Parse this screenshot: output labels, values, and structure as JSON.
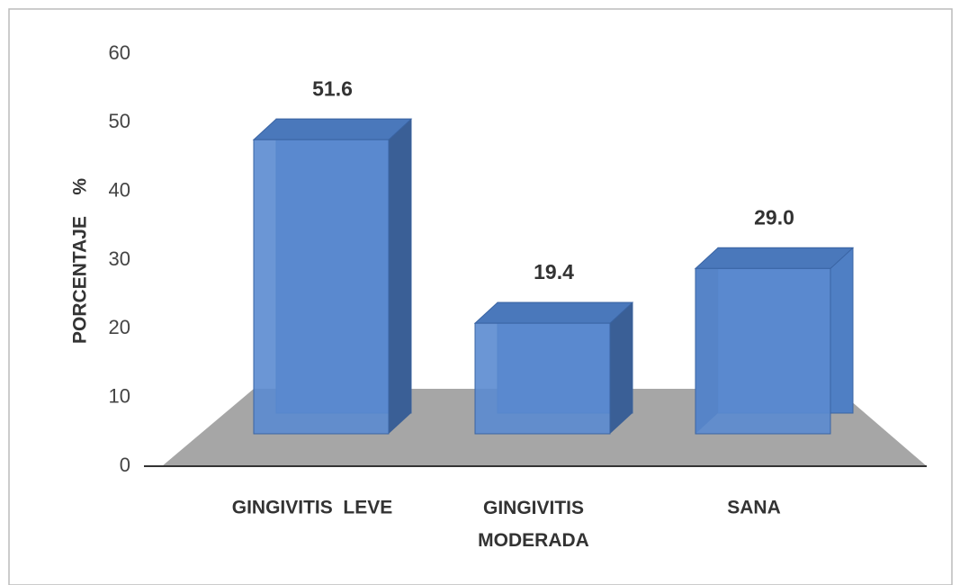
{
  "chart_data": {
    "type": "bar3d",
    "y_label": "PORCENTAJE    %",
    "categories": [
      "GINGIVITIS  LEVE",
      "GINGIVITIS MODERADA",
      "SANA"
    ],
    "values": [
      51.6,
      19.4,
      29.0
    ],
    "value_labels": [
      "51.6",
      "19.4",
      "29.0"
    ],
    "color": "#5b8bd0",
    "ylim": [
      0,
      60
    ],
    "yticks": [
      0,
      10,
      20,
      30,
      40,
      50,
      60
    ]
  }
}
